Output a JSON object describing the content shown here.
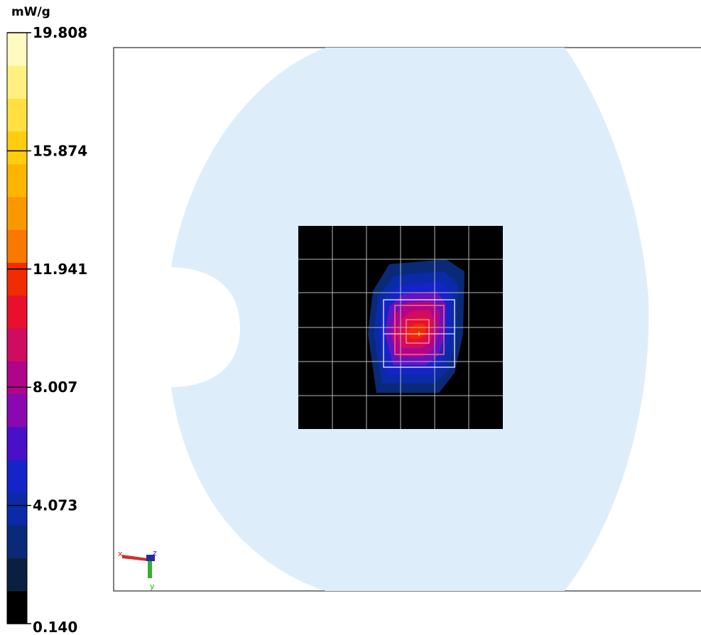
{
  "chart_data": {
    "type": "heatmap",
    "colorbar": {
      "unit": "mW/g",
      "ticks": [
        "19.808",
        "15.874",
        "11.941",
        "8.007",
        "4.073",
        "0.140"
      ],
      "levels": [
        "#000000",
        "#0b2040",
        "#0a2a78",
        "#0a2aa8",
        "#1424c8",
        "#4a10c8",
        "#8a08b0",
        "#b0048a",
        "#d00c60",
        "#e8102c",
        "#f02c00",
        "#f87800",
        "#fa9800",
        "#ffb400",
        "#ffcc10",
        "#ffe040",
        "#fff080",
        "#fffac0"
      ]
    },
    "phantom_color": "#ddeefa",
    "scan_area_color": "#000000",
    "hotspot_levels": [
      {
        "value": 1.5,
        "color": "#0a2a78"
      },
      {
        "value": 3.5,
        "color": "#0a2aa8"
      },
      {
        "value": 5.5,
        "color": "#1424c8"
      },
      {
        "value": 7.5,
        "color": "#6a10c0"
      },
      {
        "value": 9.5,
        "color": "#b0048a"
      },
      {
        "value": 11.5,
        "color": "#d00c60"
      },
      {
        "value": 13.5,
        "color": "#e8102c"
      },
      {
        "value": 15.5,
        "color": "#f02c00"
      }
    ],
    "axes_triad": {
      "x_label": "x",
      "y_label": "y",
      "z_label": "z"
    }
  }
}
